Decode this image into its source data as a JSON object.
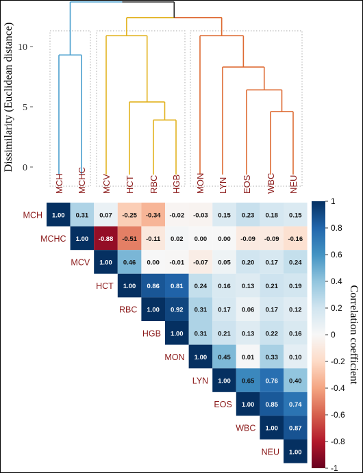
{
  "chart_data": [
    {
      "type": "dendrogram",
      "ylabel": "Dissimilarity (Euclidean distance)",
      "yticks": [
        0,
        5,
        10
      ],
      "leaves": [
        "MCH",
        "MCHC",
        "MCV",
        "HCT",
        "RBC",
        "HGB",
        "MON",
        "LYN",
        "EOS",
        "WBC",
        "NEU"
      ],
      "clusters": [
        {
          "members": [
            "MCH",
            "MCHC"
          ],
          "color": "#4a9fce"
        },
        {
          "members": [
            "MCV",
            "HCT",
            "RBC",
            "HGB"
          ],
          "color": "#e2b21f"
        },
        {
          "members": [
            "MON",
            "LYN",
            "EOS",
            "WBC",
            "NEU"
          ],
          "color": "#de6a32"
        }
      ],
      "merge_heights": {
        "RBC-HGB": 3.9,
        "HCT-(RBC,HGB)": 5.4,
        "MCV-(HCT,RBC,HGB)": 10.9,
        "WBC-NEU": 4.6,
        "EOS-(WBC,NEU)": 6.4,
        "LYN-(EOS,WBC,NEU)": 8.3,
        "MON-(LYN,...)": 10.9,
        "yellow-orange": 12.4,
        "MCH-MCHC": 9.3,
        "root": 13.7
      },
      "root_color": "#222222"
    },
    {
      "type": "heatmap",
      "labels": [
        "MCH",
        "MCHC",
        "MCV",
        "HCT",
        "RBC",
        "HGB",
        "MON",
        "LYN",
        "EOS",
        "WBC",
        "NEU"
      ],
      "matrix_upper": [
        [
          "1.00",
          "0.31",
          "0.07",
          "-0.25",
          "-0.34",
          "-0.02",
          "-0.03",
          "0.15",
          "0.23",
          "0.18",
          "0.15"
        ],
        [
          "1.00",
          "-0.88",
          "-0.51",
          "-0.11",
          "0.02",
          "0.00",
          "0.00",
          "-0.09",
          "-0.09",
          "-0.16"
        ],
        [
          "1.00",
          "0.46",
          "0.00",
          "-0.01",
          "-0.07",
          "0.05",
          "0.20",
          "0.17",
          "0.24"
        ],
        [
          "1.00",
          "0.86",
          "0.81",
          "0.24",
          "0.16",
          "0.13",
          "0.21",
          "0.19"
        ],
        [
          "1.00",
          "0.92",
          "0.31",
          "0.17",
          "0.06",
          "0.17",
          "0.12"
        ],
        [
          "1.00",
          "0.31",
          "0.21",
          "0.13",
          "0.22",
          "0.16"
        ],
        [
          "1.00",
          "0.45",
          "0.01",
          "0.33",
          "0.10"
        ],
        [
          "1.00",
          "0.65",
          "0.76",
          "0.40"
        ],
        [
          "1.00",
          "0.85",
          "0.74"
        ],
        [
          "1.00",
          "0.87"
        ],
        [
          "1.00"
        ]
      ],
      "colorbar": {
        "label": "Correlation coefficient",
        "ticks": [
          "1",
          "0.8",
          "0.6",
          "0.4",
          "0.2",
          "0",
          "-0.2",
          "-0.4",
          "-0.6",
          "-0.8",
          "-1"
        ],
        "range": [
          -1,
          1
        ],
        "colors": {
          "low": "#67001f",
          "mid": "#f7f7f7",
          "high": "#053061"
        }
      }
    }
  ]
}
